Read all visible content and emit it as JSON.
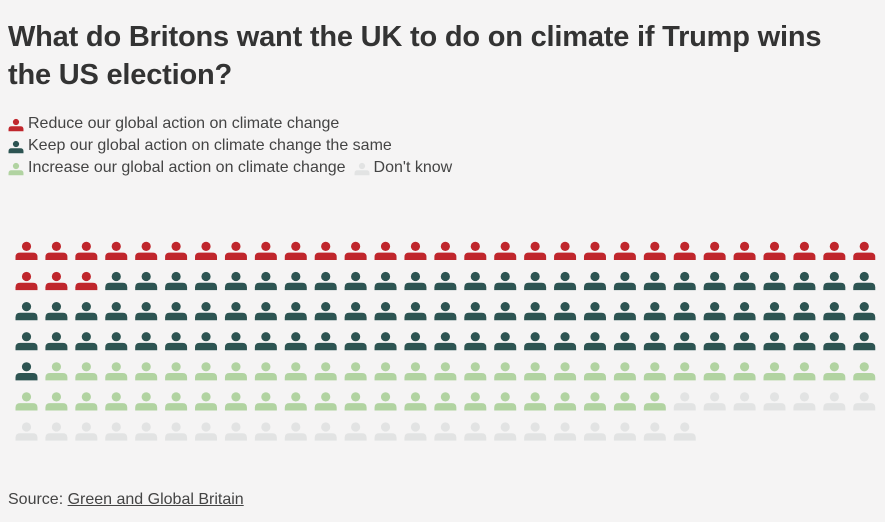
{
  "title": "What do Britons want the UK to do on climate if Trump wins the US election?",
  "source": {
    "label": "Source:",
    "link_text": "Green and Global Britain"
  },
  "chart_data": {
    "type": "waffle",
    "title": "What do Britons want the UK to do on climate if Trump wins the US election?",
    "unit": "one icon per person (approx. 1% of respondents)",
    "columns": 29,
    "categories": [
      {
        "label": "Reduce our global action on climate change",
        "count": 32,
        "color": "#c0262c"
      },
      {
        "label": "Keep our global action on climate change the same",
        "count": 85,
        "color": "#2d5452"
      },
      {
        "label": "Increase our global action on climate change",
        "count": 50,
        "color": "#b1d3a1"
      },
      {
        "label": "Don't know",
        "count": 30,
        "color": "#e2e3e3"
      }
    ],
    "legend_rows": [
      [
        0
      ],
      [
        1
      ],
      [
        2,
        3
      ]
    ],
    "legend_position": "top-left"
  }
}
